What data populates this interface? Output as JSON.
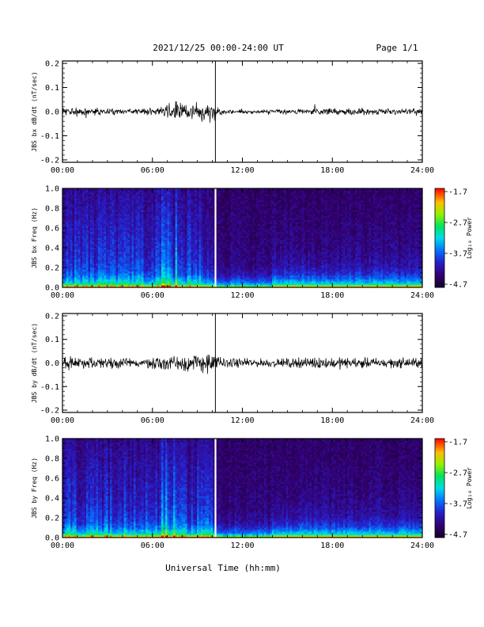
{
  "header": {
    "date_range": "2021/12/25  00:00-24:00 UT",
    "page": "Page 1/1"
  },
  "x_axis_title": "Universal Time (hh:mm)",
  "colorbar": {
    "label": "Log₁₀ Power",
    "ticks": [
      "-1.7",
      "-2.7",
      "-3.7",
      "-4.7"
    ]
  },
  "colors": {
    "line": "#000000",
    "gap_marker": "#ffffff",
    "spectrogram_background": "#1a0a3c"
  },
  "chart_data": [
    {
      "type": "line",
      "ylabel": "JBS bx dB/dt (nT/sec)",
      "x_ticks": [
        "00:00",
        "06:00",
        "12:00",
        "18:00",
        "24:00"
      ],
      "y_ticks": [
        "0.2",
        "0.1",
        "0.0",
        "-0.1",
        "-0.2"
      ],
      "xlim": [
        0,
        24
      ],
      "ylim": [
        -0.21,
        0.21
      ],
      "data_gap_hour": 10.2,
      "envelope": {
        "hours": [
          0,
          2,
          4,
          6,
          7,
          7.5,
          8,
          8.5,
          9,
          9.5,
          10,
          10.5,
          11,
          12,
          14,
          16,
          18,
          20,
          22,
          24
        ],
        "amplitude": [
          0.025,
          0.02,
          0.018,
          0.022,
          0.035,
          0.06,
          0.05,
          0.055,
          0.05,
          0.06,
          0.06,
          0.025,
          0.015,
          0.012,
          0.012,
          0.015,
          0.02,
          0.02,
          0.018,
          0.018
        ]
      }
    },
    {
      "type": "heatmap",
      "ylabel": "JBS bx Freq (Hz)",
      "x_ticks": [
        "00:00",
        "06:00",
        "12:00",
        "18:00",
        "24:00"
      ],
      "y_ticks": [
        "1.0",
        "0.8",
        "0.6",
        "0.4",
        "0.2",
        "0.0"
      ],
      "xlim": [
        0,
        24
      ],
      "ylim": [
        0,
        1.0
      ],
      "zlim": [
        -4.7,
        -1.7
      ],
      "data_gap_hour": 10.2
    },
    {
      "type": "line",
      "ylabel": "JBS by dB/dt (nT/sec)",
      "x_ticks": [
        "00:00",
        "06:00",
        "12:00",
        "18:00",
        "24:00"
      ],
      "y_ticks": [
        "0.2",
        "0.1",
        "0.0",
        "-0.1",
        "-0.2"
      ],
      "xlim": [
        0,
        24
      ],
      "ylim": [
        -0.21,
        0.21
      ],
      "data_gap_hour": 10.2,
      "envelope": {
        "hours": [
          0,
          1,
          2,
          4,
          6,
          7,
          7.5,
          8,
          8.5,
          9,
          9.5,
          10,
          10.5,
          11,
          12,
          14,
          16,
          18,
          20,
          22,
          24
        ],
        "amplitude": [
          0.03,
          0.04,
          0.03,
          0.03,
          0.03,
          0.05,
          0.055,
          0.06,
          0.055,
          0.06,
          0.06,
          0.06,
          0.04,
          0.03,
          0.025,
          0.025,
          0.03,
          0.035,
          0.03,
          0.03,
          0.03
        ]
      }
    },
    {
      "type": "heatmap",
      "ylabel": "JBS by Freq (Hz)",
      "x_ticks": [
        "00:00",
        "06:00",
        "12:00",
        "18:00",
        "24:00"
      ],
      "y_ticks": [
        "1.0",
        "0.8",
        "0.6",
        "0.4",
        "0.2",
        "0.0"
      ],
      "xlim": [
        0,
        24
      ],
      "ylim": [
        0,
        1.0
      ],
      "zlim": [
        -4.7,
        -1.7
      ],
      "data_gap_hour": 10.2
    }
  ]
}
